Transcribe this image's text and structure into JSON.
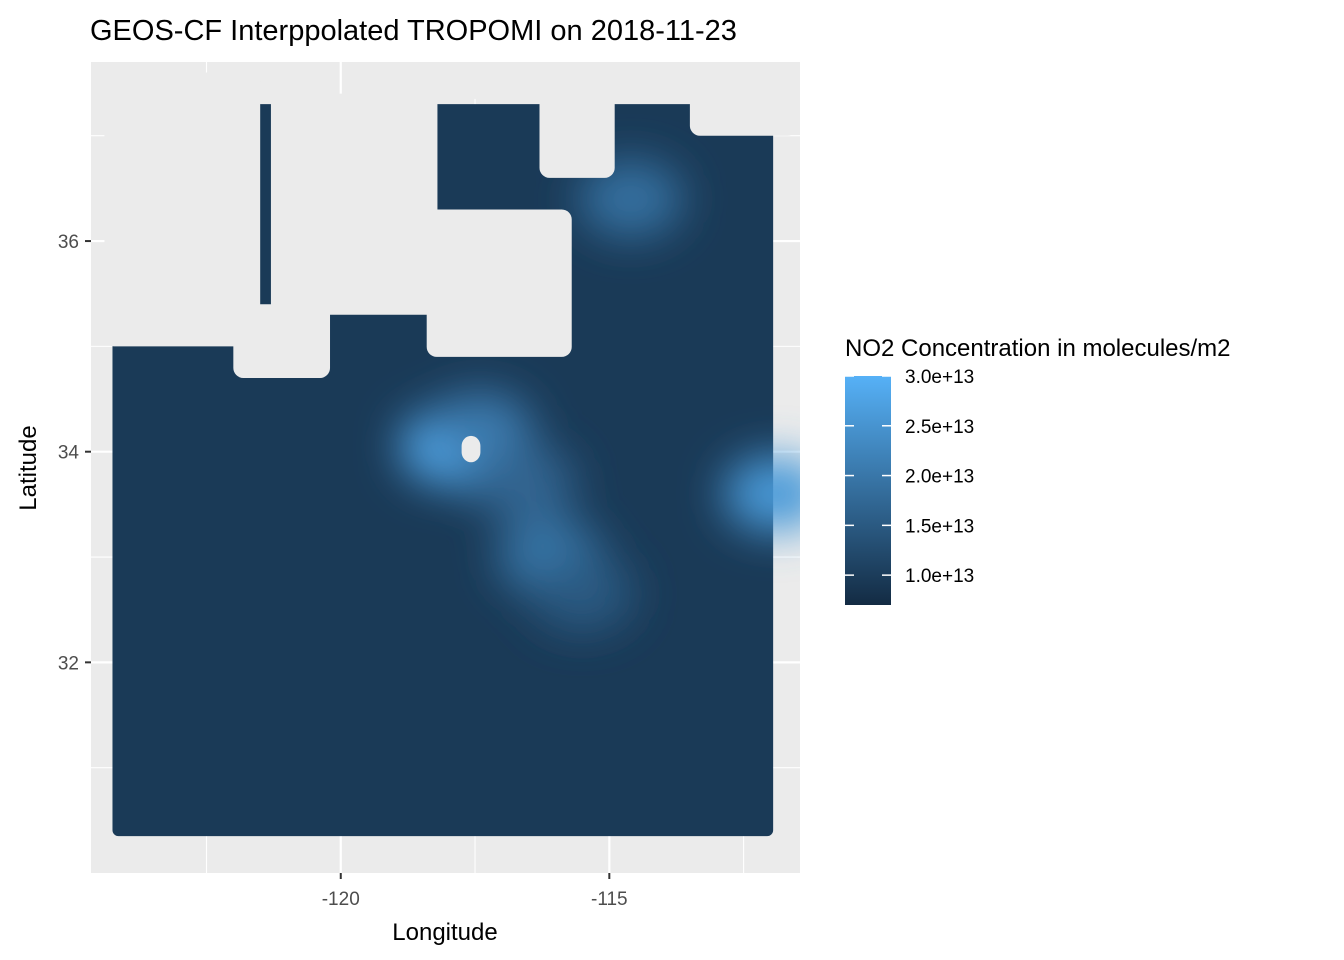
{
  "chart_data": {
    "type": "heatmap",
    "title": "GEOS-CF Interppolated TROPOMI on 2018-11-23",
    "xlabel": "Longitude",
    "ylabel": "Latitude",
    "xlim": [
      -124.65,
      -111.45
    ],
    "ylim": [
      30.0,
      37.7
    ],
    "grid": true,
    "x_ticks": [
      {
        "value": -120,
        "label": "-120"
      },
      {
        "value": -115,
        "label": "-115"
      }
    ],
    "y_ticks": [
      {
        "value": 32,
        "label": "32"
      },
      {
        "value": 34,
        "label": "34"
      },
      {
        "value": 36,
        "label": "36"
      }
    ],
    "legend": {
      "title": "NO2 Concentration in molecules/m2",
      "placement": "right",
      "range": [
        7000000000000.0,
        30000000000000.0
      ],
      "color_low": "#132b43",
      "color_high": "#56b1f7",
      "breaks": [
        {
          "value": 30000000000000.0,
          "label": "3.0e+13"
        },
        {
          "value": 25000000000000.0,
          "label": "2.5e+13"
        },
        {
          "value": 20000000000000.0,
          "label": "2.0e+13"
        },
        {
          "value": 15000000000000.0,
          "label": "1.5e+13"
        },
        {
          "value": 10000000000000.0,
          "label": "1.0e+13"
        }
      ]
    },
    "data_extent": {
      "lon": [
        -124.25,
        -111.95
      ],
      "lat": [
        30.35,
        37.3
      ]
    },
    "baseline_value": 9500000000000.0,
    "hotspots": [
      {
        "lon": -117.9,
        "lat": 34.05,
        "value": 30000000000000.0
      },
      {
        "lon": -117.4,
        "lat": 34.2,
        "value": 21000000000000.0
      },
      {
        "lon": -116.1,
        "lat": 33.0,
        "value": 20000000000000.0
      },
      {
        "lon": -116.6,
        "lat": 33.7,
        "value": 17000000000000.0
      },
      {
        "lon": -115.5,
        "lat": 32.65,
        "value": 15000000000000.0
      },
      {
        "lon": -114.6,
        "lat": 36.4,
        "value": 19000000000000.0
      },
      {
        "lon": -111.9,
        "lat": 33.6,
        "value": 26000000000000.0
      }
    ],
    "no_data_regions": [
      {
        "lon": [
          -121.3,
          -118.2
        ],
        "lat": [
          35.3,
          37.4
        ]
      },
      {
        "lon": [
          -124.4,
          -121.5
        ],
        "lat": [
          35.0,
          37.6
        ]
      },
      {
        "lon": [
          -122.0,
          -120.2
        ],
        "lat": [
          34.7,
          35.4
        ]
      },
      {
        "lon": [
          -118.4,
          -115.7
        ],
        "lat": [
          34.9,
          36.3
        ]
      },
      {
        "lon": [
          -116.3,
          -114.9
        ],
        "lat": [
          36.6,
          37.5
        ]
      },
      {
        "lon": [
          -113.5,
          -111.5
        ],
        "lat": [
          37.0,
          37.6
        ]
      },
      {
        "lon": [
          -118.1,
          -112.0
        ],
        "lat": [
          37.35,
          37.7
        ]
      },
      {
        "lon": [
          -117.75,
          -117.4
        ],
        "lat": [
          33.9,
          34.15
        ]
      }
    ]
  }
}
